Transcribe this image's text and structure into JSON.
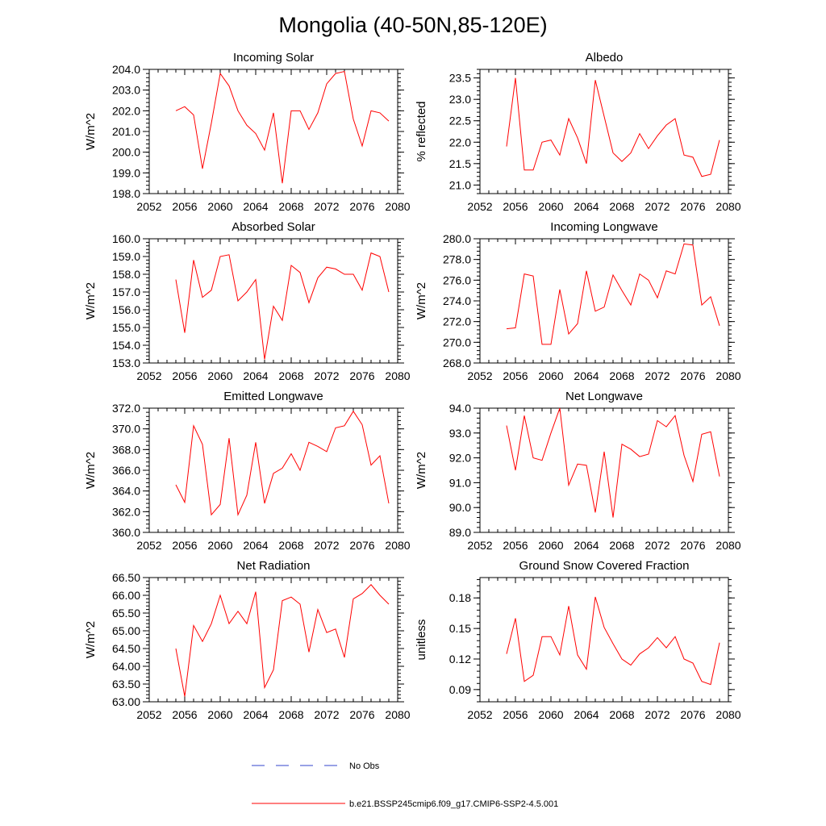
{
  "figure": {
    "title": "Mongolia (40-50N,85-120E)"
  },
  "colors": {
    "model_line": "#ff0000",
    "obs_line": "#3344cc",
    "axis": "#000000"
  },
  "legend": {
    "items": [
      {
        "label": "No Obs",
        "style": "dashed",
        "color": "#3344cc"
      },
      {
        "label": "b.e21.BSSP245cmip6.f09_g17.CMIP6-SSP2-4.5.001",
        "style": "solid",
        "color": "#ff0000"
      }
    ]
  },
  "chart_data": [
    {
      "type": "line",
      "title": "Incoming Solar",
      "xlabel": "",
      "ylabel": "W/m^2",
      "xlim": [
        2052,
        2080
      ],
      "xticks": [
        "2052",
        "2056",
        "2060",
        "2064",
        "2068",
        "2072",
        "2076",
        "2080"
      ],
      "ylim": [
        198.0,
        204.0
      ],
      "yticks": [
        "198.0",
        "199.0",
        "200.0",
        "201.0",
        "202.0",
        "203.0",
        "204.0"
      ],
      "yminor": 0.2,
      "series": [
        {
          "x": [
            2055,
            2056,
            2057,
            2058,
            2059,
            2060,
            2061,
            2062,
            2063,
            2064,
            2065,
            2066,
            2067,
            2068,
            2069,
            2070,
            2071,
            2072,
            2073,
            2074,
            2075,
            2076,
            2077,
            2078,
            2079
          ],
          "values": [
            202.0,
            202.2,
            201.8,
            199.2,
            201.4,
            203.8,
            203.2,
            202.0,
            201.3,
            200.9,
            200.1,
            201.9,
            198.5,
            202.0,
            202.0,
            201.1,
            201.9,
            203.3,
            203.8,
            203.9,
            201.6,
            200.3,
            202.0,
            201.9,
            201.5
          ]
        }
      ]
    },
    {
      "type": "line",
      "title": "Albedo",
      "xlabel": "",
      "ylabel": "% reflected",
      "xlim": [
        2052,
        2080
      ],
      "xticks": [
        "2052",
        "2056",
        "2060",
        "2064",
        "2068",
        "2072",
        "2076",
        "2080"
      ],
      "ylim": [
        20.8,
        23.7
      ],
      "yticks": [
        "21.0",
        "21.5",
        "22.0",
        "22.5",
        "23.0",
        "23.5"
      ],
      "yminor": 0.1,
      "series": [
        {
          "x": [
            2055,
            2056,
            2057,
            2058,
            2059,
            2060,
            2061,
            2062,
            2063,
            2064,
            2065,
            2066,
            2067,
            2068,
            2069,
            2070,
            2071,
            2072,
            2073,
            2074,
            2075,
            2076,
            2077,
            2078,
            2079
          ],
          "values": [
            21.9,
            23.5,
            21.35,
            21.35,
            22.0,
            22.05,
            21.7,
            22.55,
            22.1,
            21.5,
            23.45,
            22.6,
            21.75,
            21.55,
            21.75,
            22.2,
            21.85,
            22.15,
            22.4,
            22.55,
            21.7,
            21.65,
            21.2,
            21.25,
            22.05
          ]
        }
      ]
    },
    {
      "type": "line",
      "title": "Absorbed Solar",
      "xlabel": "",
      "ylabel": "W/m^2",
      "xlim": [
        2052,
        2080
      ],
      "xticks": [
        "2052",
        "2056",
        "2060",
        "2064",
        "2068",
        "2072",
        "2076",
        "2080"
      ],
      "ylim": [
        153.0,
        160.0
      ],
      "yticks": [
        "153.0",
        "154.0",
        "155.0",
        "156.0",
        "157.0",
        "158.0",
        "159.0",
        "160.0"
      ],
      "yminor": 0.2,
      "series": [
        {
          "x": [
            2055,
            2056,
            2057,
            2058,
            2059,
            2060,
            2061,
            2062,
            2063,
            2064,
            2065,
            2066,
            2067,
            2068,
            2069,
            2070,
            2071,
            2072,
            2073,
            2074,
            2075,
            2076,
            2077,
            2078,
            2079
          ],
          "values": [
            157.7,
            154.7,
            158.8,
            156.7,
            157.1,
            159.0,
            159.1,
            156.5,
            157.0,
            157.7,
            153.2,
            156.2,
            155.4,
            158.5,
            158.1,
            156.4,
            157.8,
            158.4,
            158.3,
            158.0,
            158.0,
            157.1,
            159.2,
            159.0,
            157.0
          ]
        }
      ]
    },
    {
      "type": "line",
      "title": "Incoming Longwave",
      "xlabel": "",
      "ylabel": "W/m^2",
      "xlim": [
        2052,
        2080
      ],
      "xticks": [
        "2052",
        "2056",
        "2060",
        "2064",
        "2068",
        "2072",
        "2076",
        "2080"
      ],
      "ylim": [
        268.0,
        280.0
      ],
      "yticks": [
        "268.0",
        "270.0",
        "272.0",
        "274.0",
        "276.0",
        "278.0",
        "280.0"
      ],
      "yminor": 0.4,
      "series": [
        {
          "x": [
            2055,
            2056,
            2057,
            2058,
            2059,
            2060,
            2061,
            2062,
            2063,
            2064,
            2065,
            2066,
            2067,
            2068,
            2069,
            2070,
            2071,
            2072,
            2073,
            2074,
            2075,
            2076,
            2077,
            2078,
            2079
          ],
          "values": [
            271.3,
            271.4,
            276.6,
            276.4,
            269.8,
            269.8,
            275.1,
            270.8,
            271.8,
            276.9,
            273.0,
            273.4,
            276.5,
            275.0,
            273.6,
            276.6,
            276.0,
            274.3,
            276.9,
            276.6,
            279.5,
            279.4,
            273.6,
            274.4,
            271.6
          ]
        }
      ]
    },
    {
      "type": "line",
      "title": "Emitted Longwave",
      "xlabel": "",
      "ylabel": "W/m^2",
      "xlim": [
        2052,
        2080
      ],
      "xticks": [
        "2052",
        "2056",
        "2060",
        "2064",
        "2068",
        "2072",
        "2076",
        "2080"
      ],
      "ylim": [
        360.0,
        372.0
      ],
      "yticks": [
        "360.0",
        "362.0",
        "364.0",
        "366.0",
        "368.0",
        "370.0",
        "372.0"
      ],
      "yminor": 0.4,
      "series": [
        {
          "x": [
            2055,
            2056,
            2057,
            2058,
            2059,
            2060,
            2061,
            2062,
            2063,
            2064,
            2065,
            2066,
            2067,
            2068,
            2069,
            2070,
            2071,
            2072,
            2073,
            2074,
            2075,
            2076,
            2077,
            2078,
            2079
          ],
          "values": [
            364.6,
            362.9,
            370.3,
            368.5,
            361.7,
            362.7,
            369.1,
            361.7,
            363.6,
            368.7,
            362.8,
            365.7,
            366.2,
            367.6,
            366.0,
            368.7,
            368.3,
            367.8,
            370.1,
            370.3,
            371.7,
            370.4,
            366.5,
            367.4,
            362.8
          ]
        }
      ]
    },
    {
      "type": "line",
      "title": "Net Longwave",
      "xlabel": "",
      "ylabel": "W/m^2",
      "xlim": [
        2052,
        2080
      ],
      "xticks": [
        "2052",
        "2056",
        "2060",
        "2064",
        "2068",
        "2072",
        "2076",
        "2080"
      ],
      "ylim": [
        89.0,
        94.0
      ],
      "yticks": [
        "89.0",
        "90.0",
        "91.0",
        "92.0",
        "93.0",
        "94.0"
      ],
      "yminor": 0.2,
      "series": [
        {
          "x": [
            2055,
            2056,
            2057,
            2058,
            2059,
            2060,
            2061,
            2062,
            2063,
            2064,
            2065,
            2066,
            2067,
            2068,
            2069,
            2070,
            2071,
            2072,
            2073,
            2074,
            2075,
            2076,
            2077,
            2078,
            2079
          ],
          "values": [
            93.3,
            91.5,
            93.7,
            92.0,
            91.9,
            93.0,
            94.0,
            90.9,
            91.75,
            91.7,
            89.8,
            92.25,
            89.6,
            92.55,
            92.35,
            92.05,
            92.15,
            93.5,
            93.25,
            93.7,
            92.1,
            91.05,
            92.95,
            93.05,
            91.25
          ]
        }
      ]
    },
    {
      "type": "line",
      "title": "Net Radiation",
      "xlabel": "",
      "ylabel": "W/m^2",
      "xlim": [
        2052,
        2080
      ],
      "xticks": [
        "2052",
        "2056",
        "2060",
        "2064",
        "2068",
        "2072",
        "2076",
        "2080"
      ],
      "ylim": [
        63.0,
        66.5
      ],
      "yticks": [
        "63.00",
        "63.50",
        "64.00",
        "64.50",
        "65.00",
        "65.50",
        "66.00",
        "66.50"
      ],
      "yminor": 0.1,
      "series": [
        {
          "x": [
            2055,
            2056,
            2057,
            2058,
            2059,
            2060,
            2061,
            2062,
            2063,
            2064,
            2065,
            2066,
            2067,
            2068,
            2069,
            2070,
            2071,
            2072,
            2073,
            2074,
            2075,
            2076,
            2077,
            2078,
            2079
          ],
          "values": [
            64.5,
            63.15,
            65.15,
            64.7,
            65.2,
            66.0,
            65.2,
            65.55,
            65.2,
            66.1,
            63.4,
            63.9,
            65.85,
            65.95,
            65.75,
            64.4,
            65.6,
            64.95,
            65.05,
            64.25,
            65.9,
            66.05,
            66.3,
            66.0,
            65.75
          ]
        }
      ]
    },
    {
      "type": "line",
      "title": "Ground Snow Covered Fraction",
      "xlabel": "",
      "ylabel": "unitless",
      "xlim": [
        2052,
        2080
      ],
      "xticks": [
        "2052",
        "2056",
        "2060",
        "2064",
        "2068",
        "2072",
        "2076",
        "2080"
      ],
      "ylim": [
        0.078,
        0.2
      ],
      "yticks": [
        "0.09",
        "0.12",
        "0.15",
        "0.18"
      ],
      "yminor": 0.006,
      "series": [
        {
          "x": [
            2055,
            2056,
            2057,
            2058,
            2059,
            2060,
            2061,
            2062,
            2063,
            2064,
            2065,
            2066,
            2067,
            2068,
            2069,
            2070,
            2071,
            2072,
            2073,
            2074,
            2075,
            2076,
            2077,
            2078,
            2079
          ],
          "values": [
            0.125,
            0.16,
            0.098,
            0.104,
            0.142,
            0.142,
            0.124,
            0.172,
            0.124,
            0.11,
            0.181,
            0.151,
            0.135,
            0.12,
            0.114,
            0.125,
            0.131,
            0.141,
            0.131,
            0.142,
            0.12,
            0.116,
            0.098,
            0.095,
            0.136
          ]
        }
      ]
    }
  ]
}
